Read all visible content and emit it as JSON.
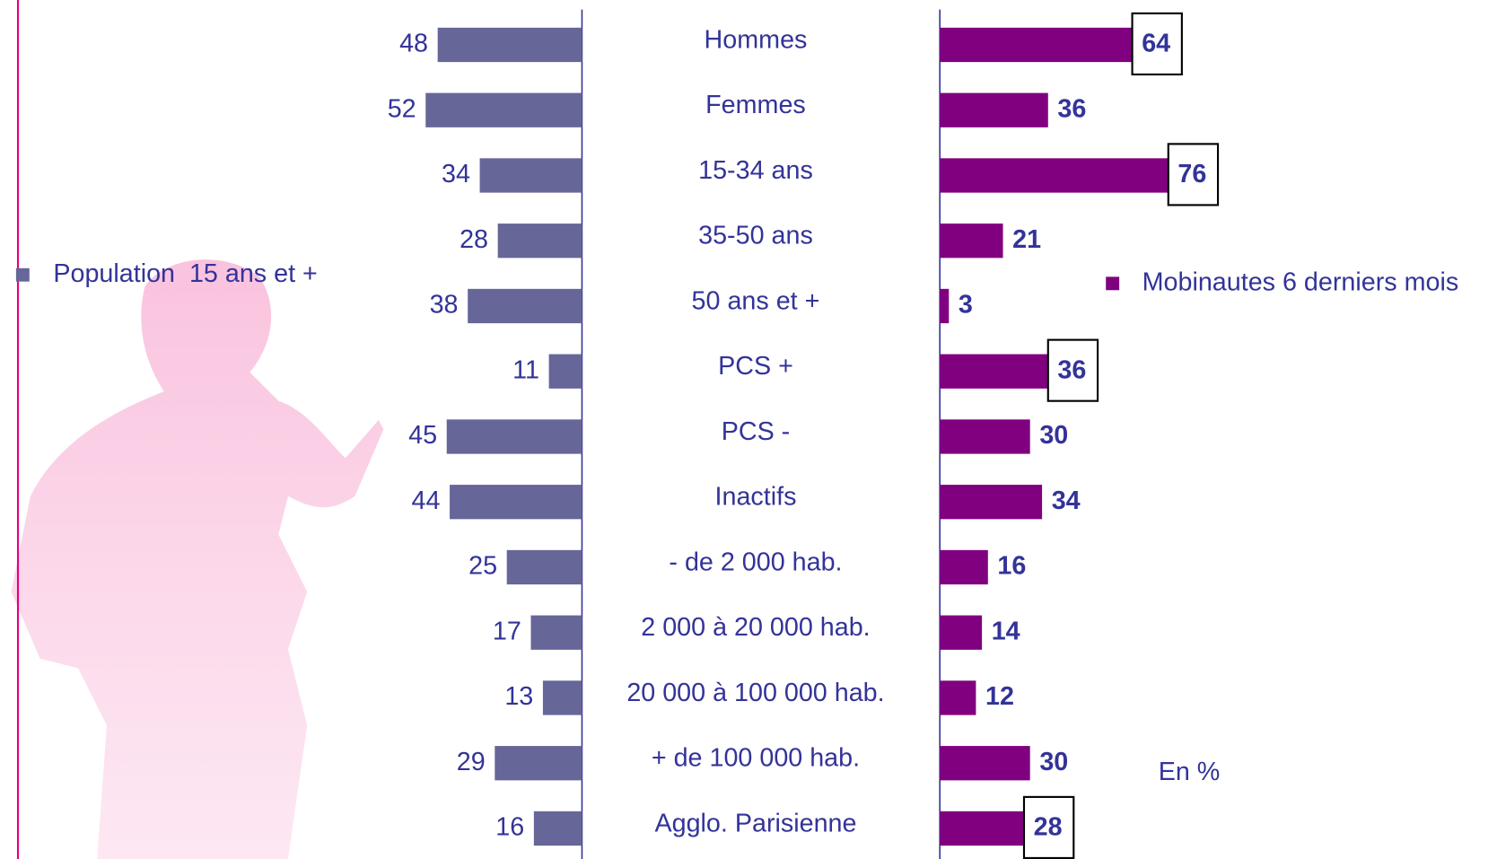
{
  "chart_data": {
    "type": "butterfly-bar",
    "categories": [
      "Hommes",
      "Femmes",
      "15-34 ans",
      "35-50 ans",
      "50 ans et +",
      "PCS +",
      "PCS -",
      "Inactifs",
      "- de 2 000 hab.",
      "2 000 à 20 000 hab.",
      "20 000 à 100 000 hab.",
      "+ de 100 000 hab.",
      "Agglo. Parisienne"
    ],
    "series": [
      {
        "name": "Population  15 ans et +",
        "color": "#666699",
        "values": [
          48,
          52,
          34,
          28,
          38,
          11,
          45,
          44,
          25,
          17,
          13,
          29,
          16
        ]
      },
      {
        "name": "Mobinautes 6 derniers mois",
        "color": "#800080",
        "values": [
          64,
          36,
          76,
          21,
          3,
          36,
          30,
          34,
          16,
          14,
          12,
          30,
          28
        ],
        "boxed": [
          0,
          2,
          5,
          12
        ]
      }
    ],
    "xlim": [
      0,
      100
    ],
    "annotation": "En %"
  }
}
